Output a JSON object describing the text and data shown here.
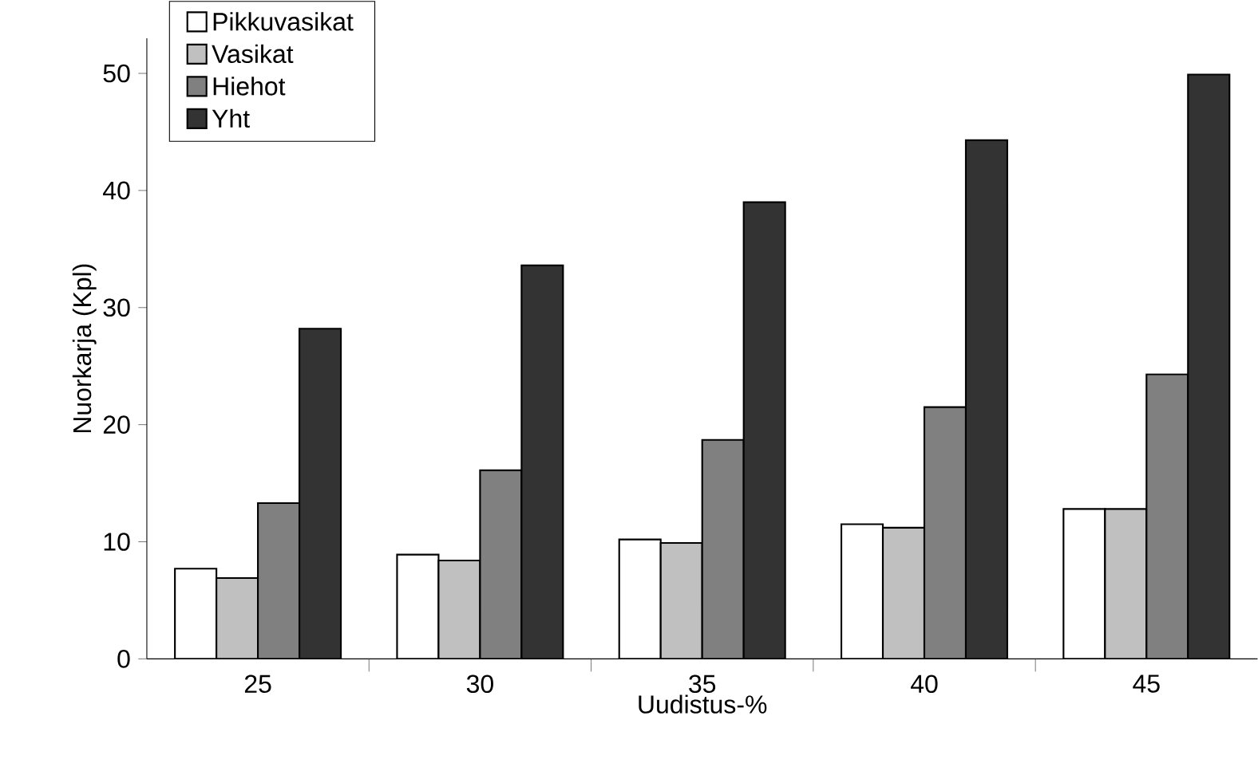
{
  "chart_data": {
    "type": "bar",
    "xlabel": "Uudistus-%",
    "ylabel": "Nuorkarja (Kpl)",
    "categories": [
      "25",
      "30",
      "35",
      "40",
      "45"
    ],
    "series": [
      {
        "name": "Pikkuvasikat",
        "color": "#ffffff",
        "values": [
          7.7,
          8.9,
          10.2,
          11.5,
          12.8
        ]
      },
      {
        "name": "Vasikat",
        "color": "#c0c0c0",
        "values": [
          6.9,
          8.4,
          9.9,
          11.2,
          12.8
        ]
      },
      {
        "name": "Hiehot",
        "color": "#808080",
        "values": [
          13.3,
          16.1,
          18.7,
          21.5,
          24.3
        ]
      },
      {
        "name": "Yht",
        "color": "#333333",
        "values": [
          28.2,
          33.6,
          39.0,
          44.3,
          49.9
        ]
      }
    ],
    "ylim": [
      0,
      53
    ],
    "yticks": [
      0,
      10,
      20,
      30,
      40,
      50
    ],
    "grid": false,
    "legend": "top left"
  }
}
